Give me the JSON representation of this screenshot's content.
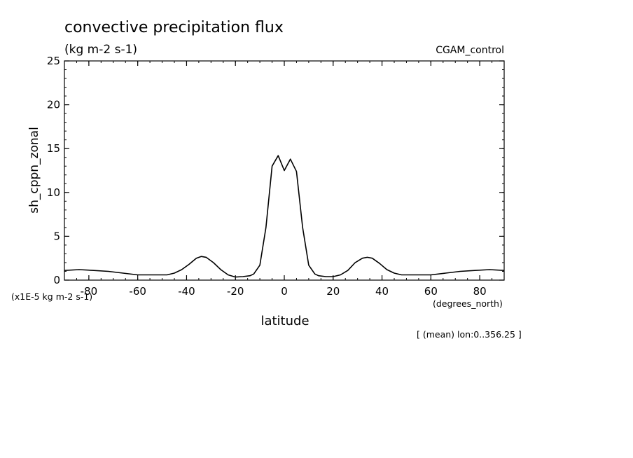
{
  "chart_data": {
    "type": "line",
    "title": "convective precipitation flux",
    "subtitle": "(kg m-2 s-1)",
    "dataset_label": "CGAM_control",
    "xlabel": "latitude",
    "x_units": "(degrees_north)",
    "ylabel": "sh_cppn_zonal",
    "y_scale_note": "(x1E-5 kg m-2 s-1)",
    "footnote": "[ (mean) lon:0..356.25 ]",
    "xlim": [
      -90,
      90
    ],
    "ylim": [
      0,
      25
    ],
    "x_ticks": [
      -80,
      -60,
      -40,
      -20,
      0,
      20,
      40,
      60,
      80
    ],
    "x_tick_labels": [
      "-80",
      "-60",
      "-40",
      "-20",
      "0",
      "20",
      "40",
      "60",
      "80"
    ],
    "y_ticks": [
      0,
      5,
      10,
      15,
      20,
      25
    ],
    "y_tick_labels": [
      "0",
      "5",
      "10",
      "15",
      "20",
      "25"
    ],
    "grid": false,
    "line_color": "#000000",
    "x": [
      -90,
      -84,
      -78,
      -72,
      -66,
      -60,
      -54,
      -48,
      -45,
      -42,
      -39,
      -36,
      -34,
      -32,
      -29,
      -26,
      -23,
      -20,
      -17,
      -14,
      -12.5,
      -10,
      -7.5,
      -5,
      -2.5,
      0,
      2.5,
      5,
      7.5,
      10,
      12.5,
      14,
      17,
      20,
      23,
      26,
      29,
      32,
      34,
      36,
      39,
      42,
      45,
      48,
      54,
      60,
      66,
      72,
      78,
      84,
      90
    ],
    "series": [
      {
        "values": [
          1.1,
          1.2,
          1.1,
          1.0,
          0.8,
          0.6,
          0.6,
          0.6,
          0.8,
          1.2,
          1.8,
          2.5,
          2.7,
          2.6,
          2.0,
          1.2,
          0.6,
          0.35,
          0.4,
          0.5,
          0.7,
          1.7,
          6.0,
          13.0,
          14.2,
          12.5,
          13.8,
          12.4,
          6.0,
          1.7,
          0.7,
          0.5,
          0.4,
          0.4,
          0.6,
          1.1,
          2.0,
          2.5,
          2.6,
          2.5,
          1.9,
          1.2,
          0.8,
          0.6,
          0.6,
          0.6,
          0.8,
          1.0,
          1.1,
          1.2,
          1.1
        ]
      }
    ]
  }
}
